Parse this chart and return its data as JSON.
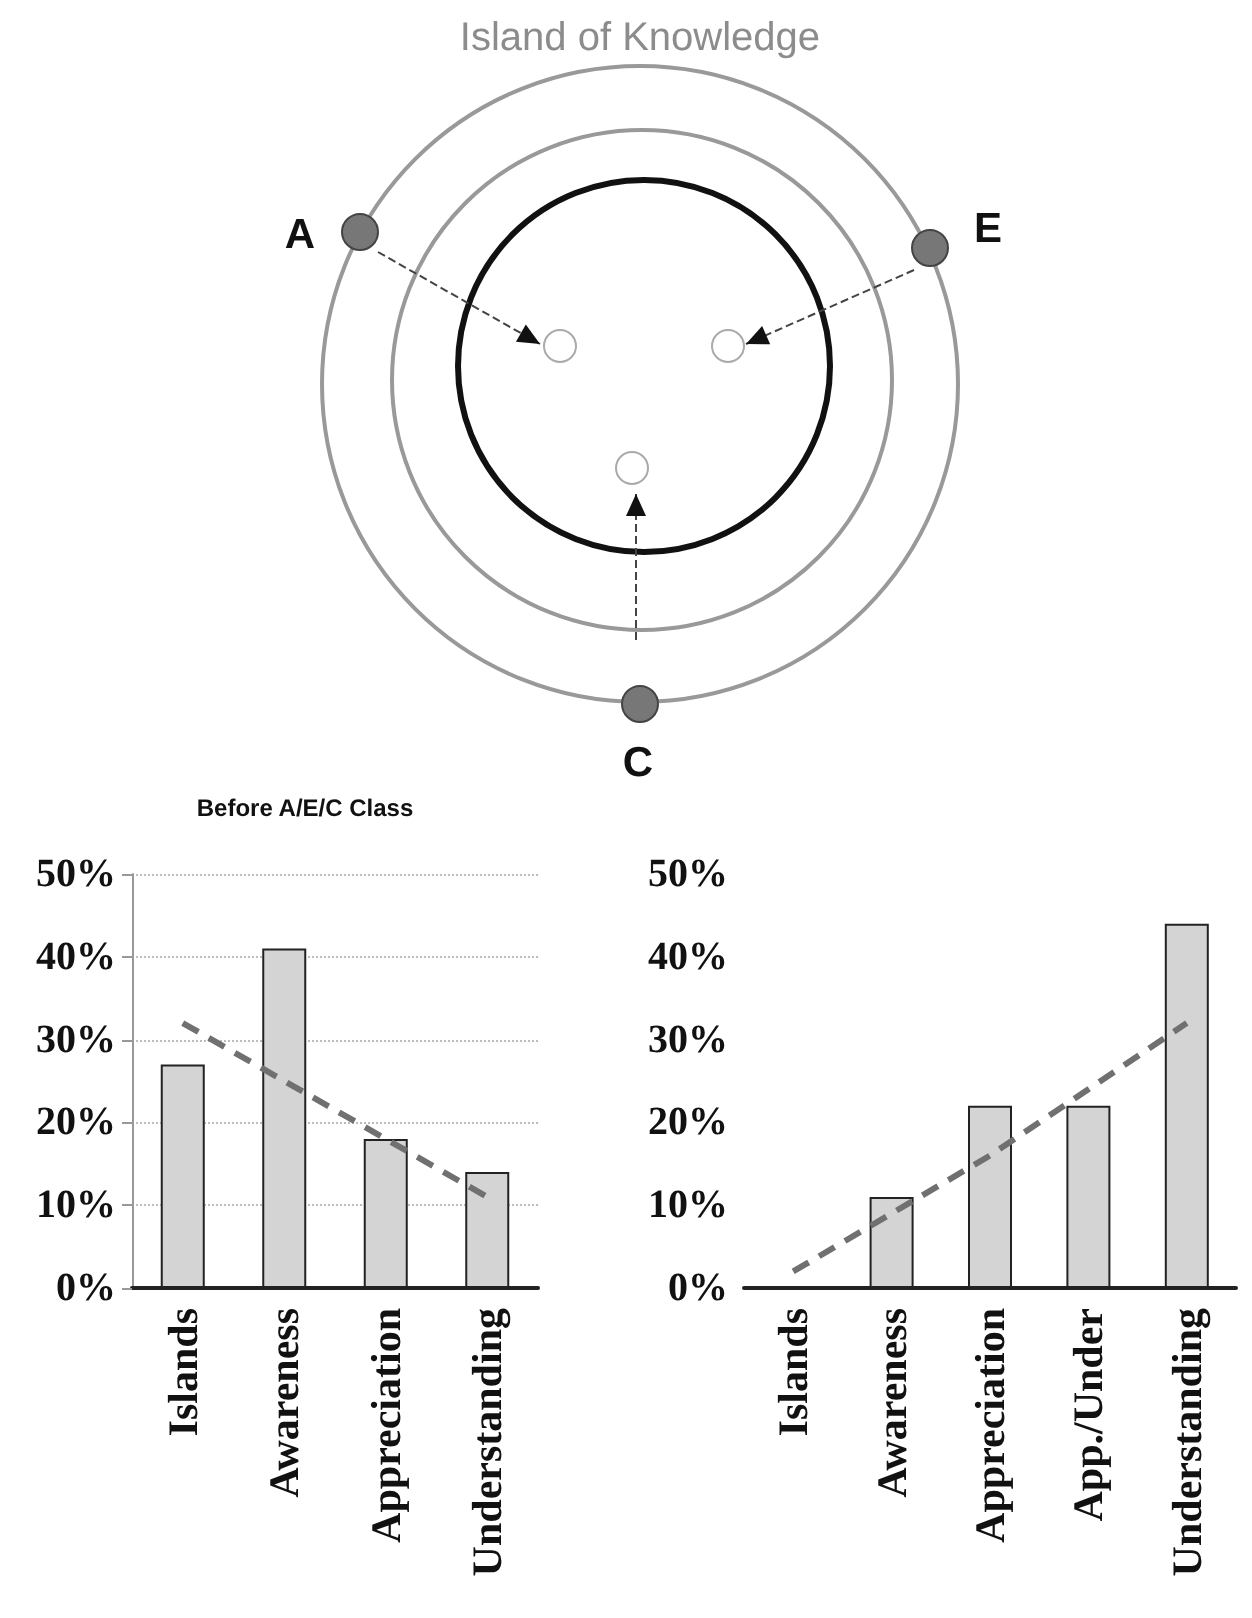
{
  "chart_data": [
    {
      "type": "other",
      "title": "Island of Knowledge",
      "annotations": [
        "A",
        "E",
        "C"
      ]
    },
    {
      "type": "bar",
      "title": "Before A/E/C Class",
      "categories": [
        "Islands",
        "Awareness",
        "Appreciation",
        "Understanding"
      ],
      "series": [
        {
          "type": "bar",
          "color": "#d4d4d4",
          "values": [
            27,
            41,
            18,
            14
          ]
        },
        {
          "type": "line",
          "color": "#707070",
          "line_style": "dashed",
          "marker": "none",
          "values": [
            32,
            25,
            18,
            11
          ]
        }
      ],
      "ylim": [
        0,
        50
      ],
      "yticks": [
        {
          "value": 0,
          "label": "0%"
        },
        {
          "value": 10,
          "label": "10%"
        },
        {
          "value": 20,
          "label": "20%"
        },
        {
          "value": 30,
          "label": "30%"
        },
        {
          "value": 40,
          "label": "40%"
        },
        {
          "value": 50,
          "label": "50%"
        }
      ],
      "grid": "y"
    },
    {
      "type": "bar",
      "categories": [
        "Islands",
        "Awareness",
        "Appreciation",
        "App./Under",
        "Understanding"
      ],
      "series": [
        {
          "type": "bar",
          "color": "#d4d4d4",
          "values": [
            0,
            11,
            22,
            22,
            44
          ]
        },
        {
          "type": "line",
          "color": "#707070",
          "line_style": "dashed",
          "marker": "none",
          "values": [
            2,
            9,
            16,
            24,
            32
          ]
        }
      ],
      "ylim": [
        0,
        50
      ],
      "yticks": [
        {
          "value": 0,
          "label": "0%"
        },
        {
          "value": 10,
          "label": "10%"
        },
        {
          "value": 20,
          "label": "20%"
        },
        {
          "value": 30,
          "label": "30%"
        },
        {
          "value": 40,
          "label": "40%"
        },
        {
          "value": 50,
          "label": "50%"
        }
      ],
      "grid": false
    }
  ]
}
